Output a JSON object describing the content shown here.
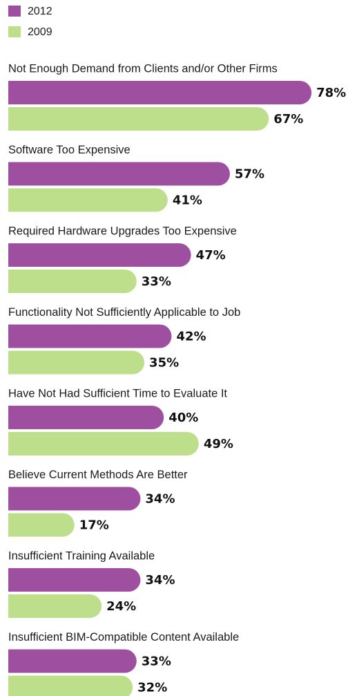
{
  "chart_data": {
    "type": "hbar",
    "categories": [
      "Not Enough Demand from Clients and/or Other Firms",
      "Software Too Expensive",
      "Required Hardware Upgrades Too Expensive",
      "Functionality Not Sufficiently Applicable to Job",
      "Have Not Had Sufficient Time to Evaluate It",
      "Believe Current Methods Are Better",
      "Insufficient Training Available",
      "Insufficient BIM-Compatible Content Available"
    ],
    "series": [
      {
        "name": "2012",
        "color": "#9e4f9f",
        "values": [
          78,
          57,
          47,
          42,
          40,
          34,
          34,
          33
        ],
        "value_labels": [
          "78%",
          "57%",
          "47%",
          "42%",
          "40%",
          "34%",
          "34%",
          "33%"
        ]
      },
      {
        "name": "2009",
        "color": "#bddf8c",
        "values": [
          67,
          41,
          33,
          35,
          49,
          17,
          24,
          32
        ],
        "value_labels": [
          "67%",
          "41%",
          "33%",
          "35%",
          "49%",
          "17%",
          "24%",
          "32%"
        ]
      }
    ]
  }
}
